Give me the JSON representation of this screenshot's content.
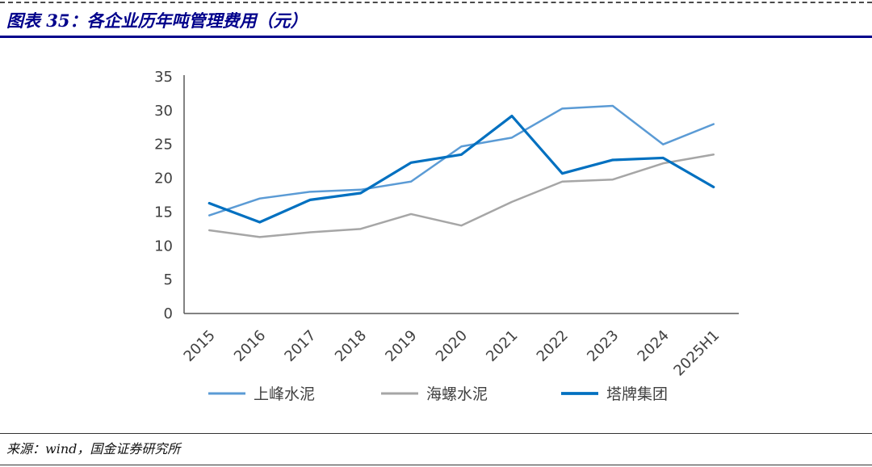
{
  "header": {
    "title": "图表 35：各企业历年吨管理费用（元）"
  },
  "footer": {
    "source": "来源：wind，国金证券研究所"
  },
  "chart_data": {
    "type": "line",
    "title": "各企业历年吨管理费用（元）",
    "categories": [
      "2015",
      "2016",
      "2017",
      "2018",
      "2019",
      "2020",
      "2021",
      "2022",
      "2023",
      "2024",
      "2025H1"
    ],
    "series": [
      {
        "name": "上峰水泥",
        "color": "#5B9BD5",
        "stroke_width": 2.5,
        "values": [
          14.5,
          17.0,
          18.0,
          18.3,
          19.5,
          24.7,
          26.0,
          30.3,
          30.7,
          25.0,
          28.0
        ]
      },
      {
        "name": "海螺水泥",
        "color": "#A6A6A6",
        "stroke_width": 2.5,
        "values": [
          12.3,
          11.3,
          12.0,
          12.5,
          14.7,
          13.0,
          16.5,
          19.5,
          19.8,
          22.2,
          23.5
        ]
      },
      {
        "name": "塔牌集团",
        "color": "#0070C0",
        "stroke_width": 3.2,
        "values": [
          16.3,
          13.5,
          16.8,
          17.8,
          22.3,
          23.5,
          29.2,
          20.7,
          22.7,
          23.0,
          18.7
        ]
      }
    ],
    "ylim": [
      0,
      35
    ],
    "yticks": [
      0,
      5,
      10,
      15,
      20,
      25,
      30,
      35
    ],
    "xlabel": "",
    "ylabel": "",
    "grid": false,
    "legend_position": "bottom",
    "axis_color": "#595959",
    "tick_label_color": "#404040"
  }
}
